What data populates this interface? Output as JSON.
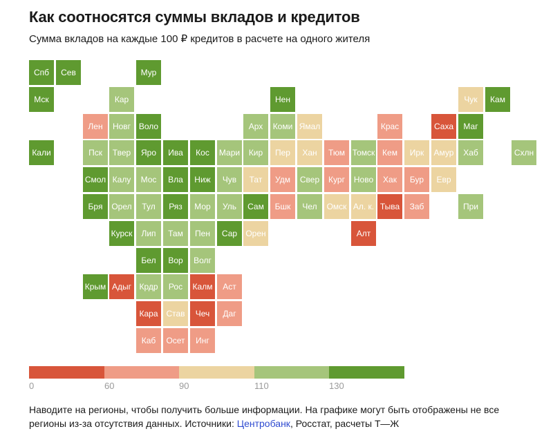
{
  "header": {
    "title": "Как соотносятся суммы вкладов и кредитов",
    "subtitle": "Сумма вкладов на каждые 100 ₽ кредитов в расчете на одного жителя"
  },
  "colors": {
    "lt60": "#d8553a",
    "60-90": "#ef9c86",
    "90-110": "#ecd4a1",
    "110-130": "#a5c57b",
    "ge130": "#5f9a30"
  },
  "legend": {
    "bins": [
      "lt60",
      "60-90",
      "90-110",
      "110-130",
      "ge130"
    ],
    "ticks": [
      "0",
      "60",
      "90",
      "110",
      "130"
    ]
  },
  "chart_data": {
    "type": "heatmap",
    "title": "Как соотносятся суммы вкладов и кредитов",
    "subtitle": "Сумма вкладов на каждые 100 ₽ кредитов в расчете на одного жителя",
    "bins": [
      {
        "key": "lt60",
        "range": [
          0,
          60
        ]
      },
      {
        "key": "60-90",
        "range": [
          60,
          90
        ]
      },
      {
        "key": "90-110",
        "range": [
          90,
          110
        ]
      },
      {
        "key": "110-130",
        "range": [
          110,
          130
        ]
      },
      {
        "key": "ge130",
        "range": [
          130,
          null
        ]
      }
    ],
    "regions": [
      {
        "label": "Спб",
        "col": 0,
        "row": 0,
        "bin": "ge130"
      },
      {
        "label": "Сев",
        "col": 1,
        "row": 0,
        "bin": "ge130"
      },
      {
        "label": "Мур",
        "col": 4,
        "row": 0,
        "bin": "ge130"
      },
      {
        "label": "Мск",
        "col": 0,
        "row": 1,
        "bin": "ge130"
      },
      {
        "label": "Кар",
        "col": 3,
        "row": 1,
        "bin": "110-130"
      },
      {
        "label": "Нен",
        "col": 9,
        "row": 1,
        "bin": "ge130"
      },
      {
        "label": "Чук",
        "col": 16,
        "row": 1,
        "bin": "90-110"
      },
      {
        "label": "Кам",
        "col": 17,
        "row": 1,
        "bin": "ge130"
      },
      {
        "label": "Лен",
        "col": 2,
        "row": 2,
        "bin": "60-90"
      },
      {
        "label": "Новг",
        "col": 3,
        "row": 2,
        "bin": "110-130"
      },
      {
        "label": "Воло",
        "col": 4,
        "row": 2,
        "bin": "ge130"
      },
      {
        "label": "Арх",
        "col": 8,
        "row": 2,
        "bin": "110-130"
      },
      {
        "label": "Коми",
        "col": 9,
        "row": 2,
        "bin": "110-130"
      },
      {
        "label": "Ямал",
        "col": 10,
        "row": 2,
        "bin": "90-110"
      },
      {
        "label": "Крас",
        "col": 13,
        "row": 2,
        "bin": "60-90"
      },
      {
        "label": "Саха",
        "col": 15,
        "row": 2,
        "bin": "lt60"
      },
      {
        "label": "Маг",
        "col": 16,
        "row": 2,
        "bin": "ge130"
      },
      {
        "label": "Кали",
        "col": 0,
        "row": 3,
        "bin": "ge130"
      },
      {
        "label": "Пск",
        "col": 2,
        "row": 3,
        "bin": "110-130"
      },
      {
        "label": "Твер",
        "col": 3,
        "row": 3,
        "bin": "110-130"
      },
      {
        "label": "Яро",
        "col": 4,
        "row": 3,
        "bin": "ge130"
      },
      {
        "label": "Ива",
        "col": 5,
        "row": 3,
        "bin": "ge130"
      },
      {
        "label": "Кос",
        "col": 6,
        "row": 3,
        "bin": "ge130"
      },
      {
        "label": "Мари",
        "col": 7,
        "row": 3,
        "bin": "110-130"
      },
      {
        "label": "Кир",
        "col": 8,
        "row": 3,
        "bin": "110-130"
      },
      {
        "label": "Пер",
        "col": 9,
        "row": 3,
        "bin": "90-110"
      },
      {
        "label": "Хан",
        "col": 10,
        "row": 3,
        "bin": "90-110"
      },
      {
        "label": "Тюм",
        "col": 11,
        "row": 3,
        "bin": "60-90"
      },
      {
        "label": "Томск",
        "col": 12,
        "row": 3,
        "bin": "110-130"
      },
      {
        "label": "Кем",
        "col": 13,
        "row": 3,
        "bin": "60-90"
      },
      {
        "label": "Ирк",
        "col": 14,
        "row": 3,
        "bin": "90-110"
      },
      {
        "label": "Амур",
        "col": 15,
        "row": 3,
        "bin": "90-110"
      },
      {
        "label": "Хаб",
        "col": 16,
        "row": 3,
        "bin": "110-130"
      },
      {
        "label": "Схлн",
        "col": 18,
        "row": 3,
        "bin": "110-130"
      },
      {
        "label": "Смол",
        "col": 2,
        "row": 4,
        "bin": "ge130"
      },
      {
        "label": "Калу",
        "col": 3,
        "row": 4,
        "bin": "110-130"
      },
      {
        "label": "Мос",
        "col": 4,
        "row": 4,
        "bin": "110-130"
      },
      {
        "label": "Вла",
        "col": 5,
        "row": 4,
        "bin": "ge130"
      },
      {
        "label": "Ниж",
        "col": 6,
        "row": 4,
        "bin": "ge130"
      },
      {
        "label": "Чув",
        "col": 7,
        "row": 4,
        "bin": "110-130"
      },
      {
        "label": "Тат",
        "col": 8,
        "row": 4,
        "bin": "90-110"
      },
      {
        "label": "Удм",
        "col": 9,
        "row": 4,
        "bin": "60-90"
      },
      {
        "label": "Свер",
        "col": 10,
        "row": 4,
        "bin": "110-130"
      },
      {
        "label": "Кург",
        "col": 11,
        "row": 4,
        "bin": "60-90"
      },
      {
        "label": "Ново",
        "col": 12,
        "row": 4,
        "bin": "110-130"
      },
      {
        "label": "Хак",
        "col": 13,
        "row": 4,
        "bin": "60-90"
      },
      {
        "label": "Бур",
        "col": 14,
        "row": 4,
        "bin": "60-90"
      },
      {
        "label": "Евр",
        "col": 15,
        "row": 4,
        "bin": "90-110"
      },
      {
        "label": "Бря",
        "col": 2,
        "row": 5,
        "bin": "ge130"
      },
      {
        "label": "Орел",
        "col": 3,
        "row": 5,
        "bin": "110-130"
      },
      {
        "label": "Тул",
        "col": 4,
        "row": 5,
        "bin": "110-130"
      },
      {
        "label": "Ряз",
        "col": 5,
        "row": 5,
        "bin": "ge130"
      },
      {
        "label": "Мор",
        "col": 6,
        "row": 5,
        "bin": "110-130"
      },
      {
        "label": "Уль",
        "col": 7,
        "row": 5,
        "bin": "110-130"
      },
      {
        "label": "Сам",
        "col": 8,
        "row": 5,
        "bin": "ge130"
      },
      {
        "label": "Бшк",
        "col": 9,
        "row": 5,
        "bin": "60-90"
      },
      {
        "label": "Чел",
        "col": 10,
        "row": 5,
        "bin": "110-130"
      },
      {
        "label": "Омск",
        "col": 11,
        "row": 5,
        "bin": "90-110"
      },
      {
        "label": "Ал. к.",
        "col": 12,
        "row": 5,
        "bin": "90-110"
      },
      {
        "label": "Тыва",
        "col": 13,
        "row": 5,
        "bin": "lt60"
      },
      {
        "label": "Заб",
        "col": 14,
        "row": 5,
        "bin": "60-90"
      },
      {
        "label": "При",
        "col": 16,
        "row": 5,
        "bin": "110-130"
      },
      {
        "label": "Курск",
        "col": 3,
        "row": 6,
        "bin": "ge130"
      },
      {
        "label": "Лип",
        "col": 4,
        "row": 6,
        "bin": "110-130"
      },
      {
        "label": "Там",
        "col": 5,
        "row": 6,
        "bin": "110-130"
      },
      {
        "label": "Пен",
        "col": 6,
        "row": 6,
        "bin": "110-130"
      },
      {
        "label": "Сар",
        "col": 7,
        "row": 6,
        "bin": "ge130"
      },
      {
        "label": "Орен",
        "col": 8,
        "row": 6,
        "bin": "90-110"
      },
      {
        "label": "Алт",
        "col": 12,
        "row": 6,
        "bin": "lt60"
      },
      {
        "label": "Бел",
        "col": 4,
        "row": 7,
        "bin": "ge130"
      },
      {
        "label": "Вор",
        "col": 5,
        "row": 7,
        "bin": "ge130"
      },
      {
        "label": "Волг",
        "col": 6,
        "row": 7,
        "bin": "110-130"
      },
      {
        "label": "Крым",
        "col": 2,
        "row": 8,
        "bin": "ge130"
      },
      {
        "label": "Адыг",
        "col": 3,
        "row": 8,
        "bin": "lt60"
      },
      {
        "label": "Крдр",
        "col": 4,
        "row": 8,
        "bin": "110-130"
      },
      {
        "label": "Рос",
        "col": 5,
        "row": 8,
        "bin": "110-130"
      },
      {
        "label": "Калм",
        "col": 6,
        "row": 8,
        "bin": "lt60"
      },
      {
        "label": "Аст",
        "col": 7,
        "row": 8,
        "bin": "60-90"
      },
      {
        "label": "Кара",
        "col": 4,
        "row": 9,
        "bin": "lt60"
      },
      {
        "label": "Став",
        "col": 5,
        "row": 9,
        "bin": "90-110"
      },
      {
        "label": "Чеч",
        "col": 6,
        "row": 9,
        "bin": "lt60"
      },
      {
        "label": "Даг",
        "col": 7,
        "row": 9,
        "bin": "60-90"
      },
      {
        "label": "Каб",
        "col": 4,
        "row": 10,
        "bin": "60-90"
      },
      {
        "label": "Осет",
        "col": 5,
        "row": 10,
        "bin": "60-90"
      },
      {
        "label": "Инг",
        "col": 6,
        "row": 10,
        "bin": "60-90"
      }
    ]
  },
  "footer": {
    "text_before": "Наводите на регионы, чтобы получить больше информации. На графике могут быть отображены не все регионы из-за отсутствия данных. Источники: ",
    "link": "Центробанк",
    "text_after": ", Росстат, расчеты Т—Ж"
  }
}
